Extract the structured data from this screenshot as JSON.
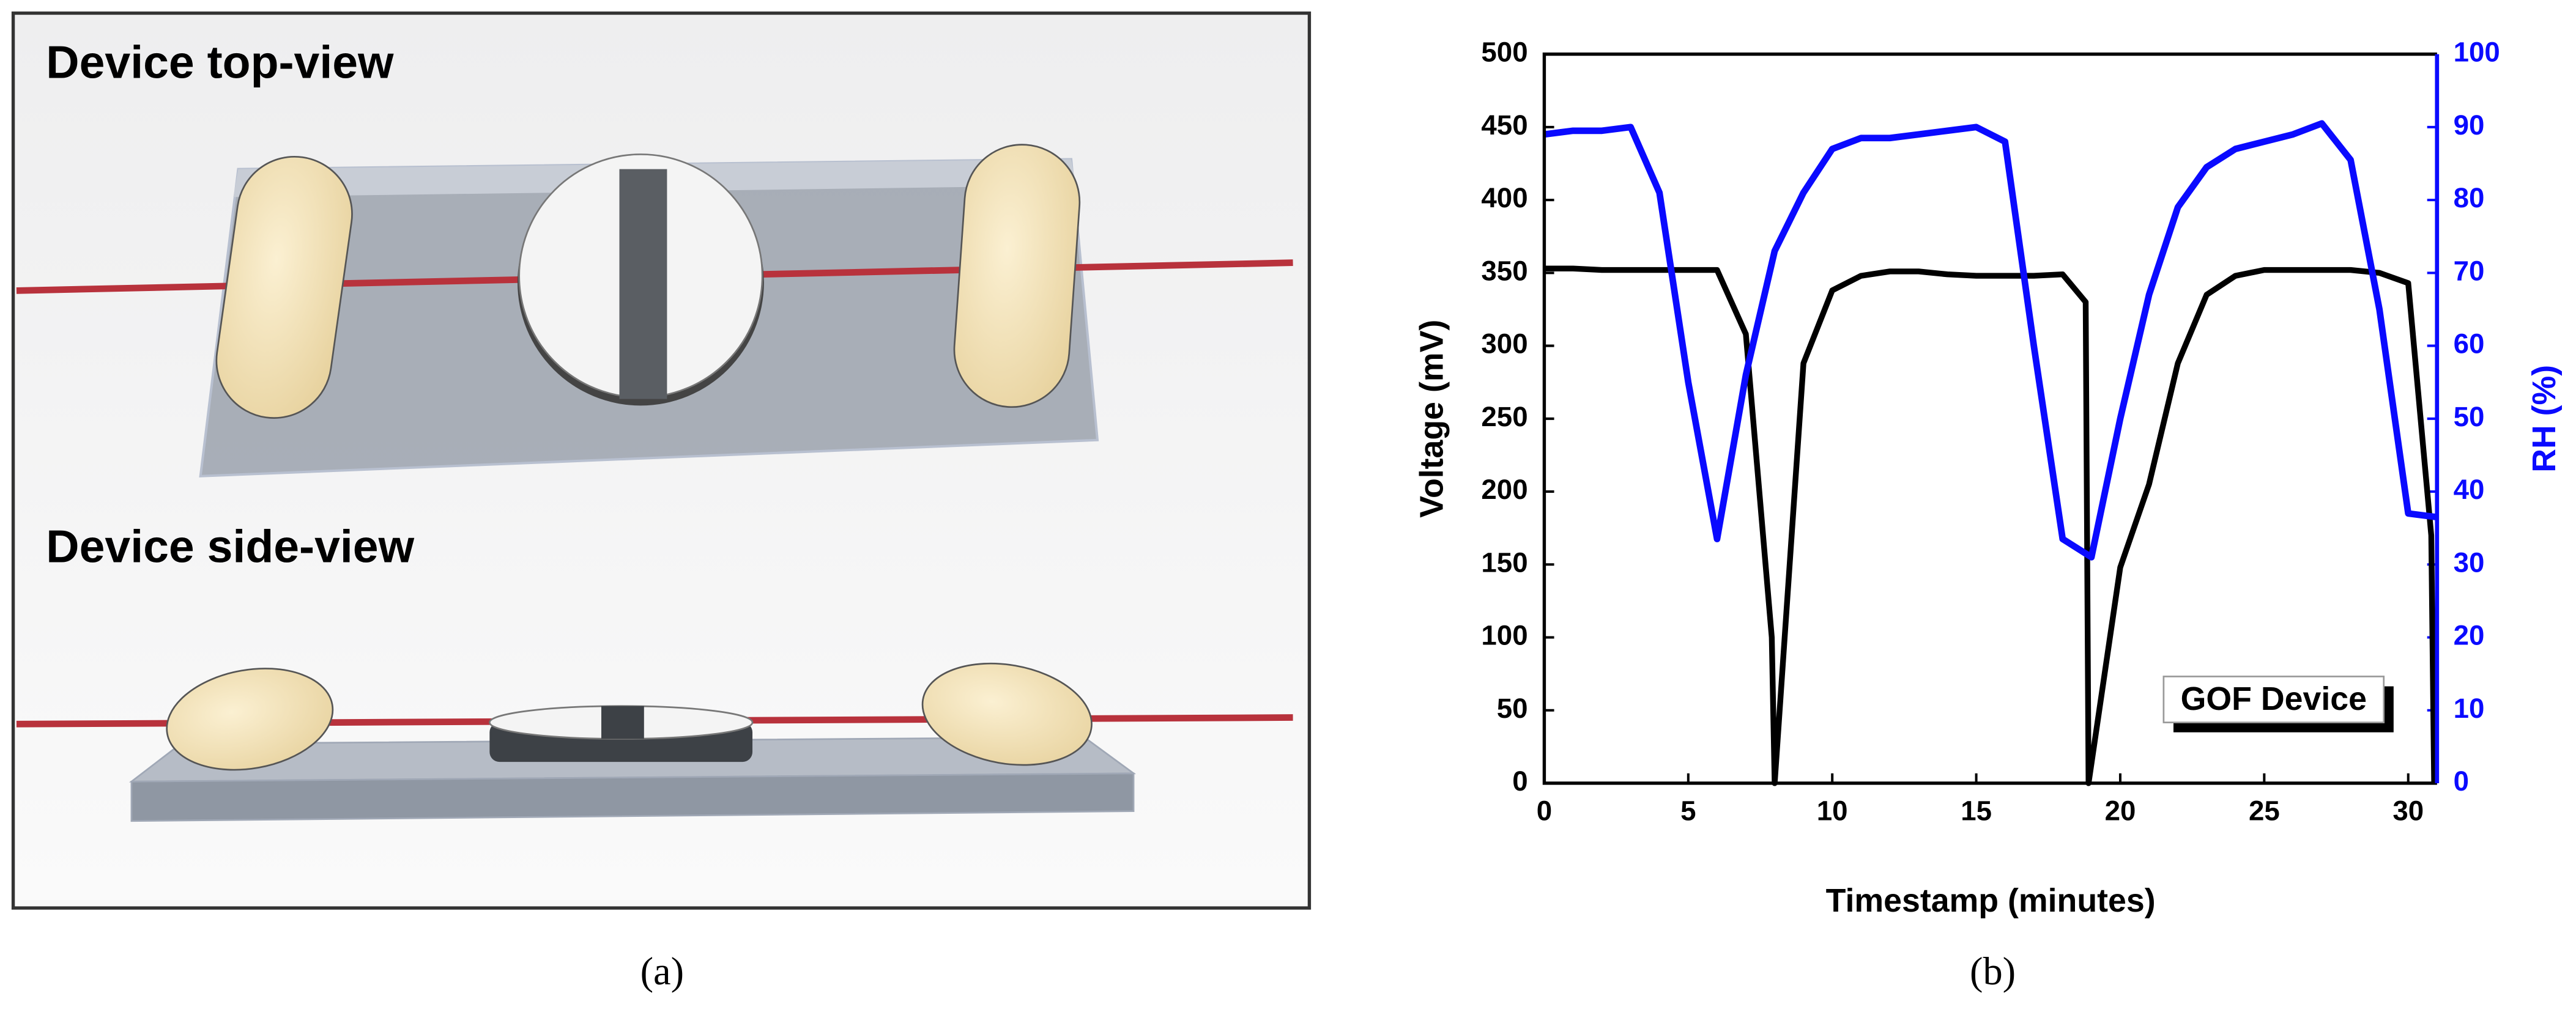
{
  "panel_a": {
    "top_view_title": "Device top-view",
    "side_view_title": "Device side-view",
    "label": "(a)"
  },
  "panel_b": {
    "label": "(b)"
  },
  "chart_data": {
    "type": "line",
    "x_label": "Timestamp (minutes)",
    "y_label": "Voltage (mV)",
    "y2_label": "RH (%)",
    "annotation": "GOF Device",
    "xlim": [
      0,
      31
    ],
    "xticks": [
      0,
      5,
      10,
      15,
      20,
      25,
      30
    ],
    "ylim": [
      0,
      500
    ],
    "yticks": [
      0,
      50,
      100,
      150,
      200,
      250,
      300,
      350,
      400,
      450,
      500
    ],
    "y2lim": [
      0,
      100
    ],
    "y2ticks": [
      0,
      10,
      20,
      30,
      40,
      50,
      60,
      70,
      80,
      90,
      100
    ],
    "series": [
      {
        "color": "#000000",
        "axis": "y",
        "x": [
          0,
          1,
          2,
          3,
          4,
          5,
          6,
          7,
          7.9,
          8,
          9,
          10,
          11,
          12,
          13,
          14,
          15,
          16,
          17,
          18,
          18.8,
          18.9,
          20,
          21,
          22,
          23,
          24,
          25,
          26,
          27,
          28,
          29,
          30,
          30.8,
          30.9
        ],
        "values": [
          353,
          353,
          352,
          352,
          352,
          352,
          352,
          308,
          100,
          0,
          288,
          338,
          348,
          351,
          351,
          349,
          348,
          348,
          348,
          349,
          330,
          0,
          148,
          205,
          288,
          335,
          348,
          352,
          352,
          352,
          352,
          350,
          343,
          170,
          0
        ]
      },
      {
        "color": "#0a0aff",
        "axis": "y2",
        "x": [
          0,
          1,
          2,
          3,
          4,
          5,
          6,
          7,
          8,
          9,
          10,
          11,
          12,
          13,
          14,
          15,
          16,
          17,
          18,
          19,
          20,
          21,
          22,
          23,
          24,
          25,
          26,
          27,
          28,
          29,
          30,
          31
        ],
        "values": [
          89,
          89.5,
          89.5,
          90,
          81,
          55,
          33.5,
          56,
          73,
          81,
          87,
          88.5,
          88.5,
          89,
          89.5,
          90,
          88,
          60,
          33.5,
          31,
          50,
          67,
          79,
          84.5,
          87,
          88,
          89,
          90.5,
          85.5,
          65,
          37,
          36.5
        ]
      }
    ]
  }
}
